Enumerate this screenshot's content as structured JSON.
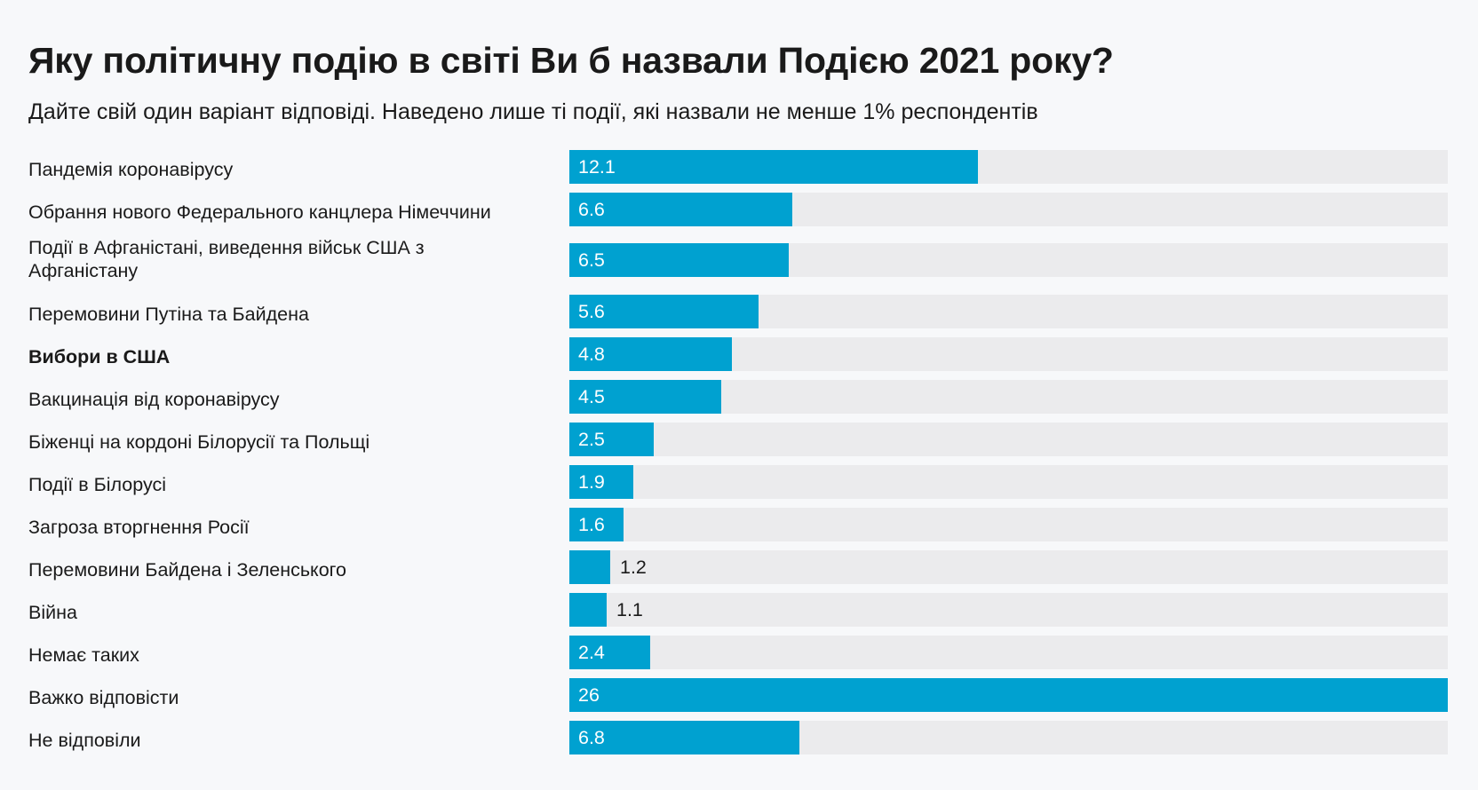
{
  "title": "Яку політичну подію в світі Ви б назвали Подією 2021 року?",
  "subtitle": "Дайте свій один варіант відповіді. Наведено лише ті події, які назвали не менше 1% респондентів",
  "colors": {
    "bar": "#00a1d0",
    "track": "#ebebed",
    "background": "#f7f8fa"
  },
  "chart_data": {
    "type": "bar",
    "orientation": "horizontal",
    "xlim": [
      0,
      26
    ],
    "categories": [
      "Пандемія коронавірусу",
      "Обрання нового Федерального канцлера Німеччини",
      "Події в Афганістані, виведення військ США з Афганістану",
      "Перемовини Путіна та Байдена",
      "Вибори в США",
      "Вакцинація від коронавірусу",
      "Біженці на кордоні Білорусії та Польщі",
      "Події в Білорусі",
      "Загроза вторгнення Росії",
      "Перемовини Байдена і Зеленського",
      "Війна",
      "Немає таких",
      "Важко відповісти",
      "Не відповіли"
    ],
    "values": [
      12.1,
      6.6,
      6.5,
      5.6,
      4.8,
      4.5,
      2.5,
      1.9,
      1.6,
      1.2,
      1.1,
      2.4,
      26,
      6.8
    ],
    "value_labels": [
      "12.1",
      "6.6",
      "6.5",
      "5.6",
      "4.8",
      "4.5",
      "2.5",
      "1.9",
      "1.6",
      "1.2",
      "1.1",
      "2.4",
      "26",
      "6.8"
    ],
    "bold_categories": [
      "Вибори в США"
    ]
  }
}
